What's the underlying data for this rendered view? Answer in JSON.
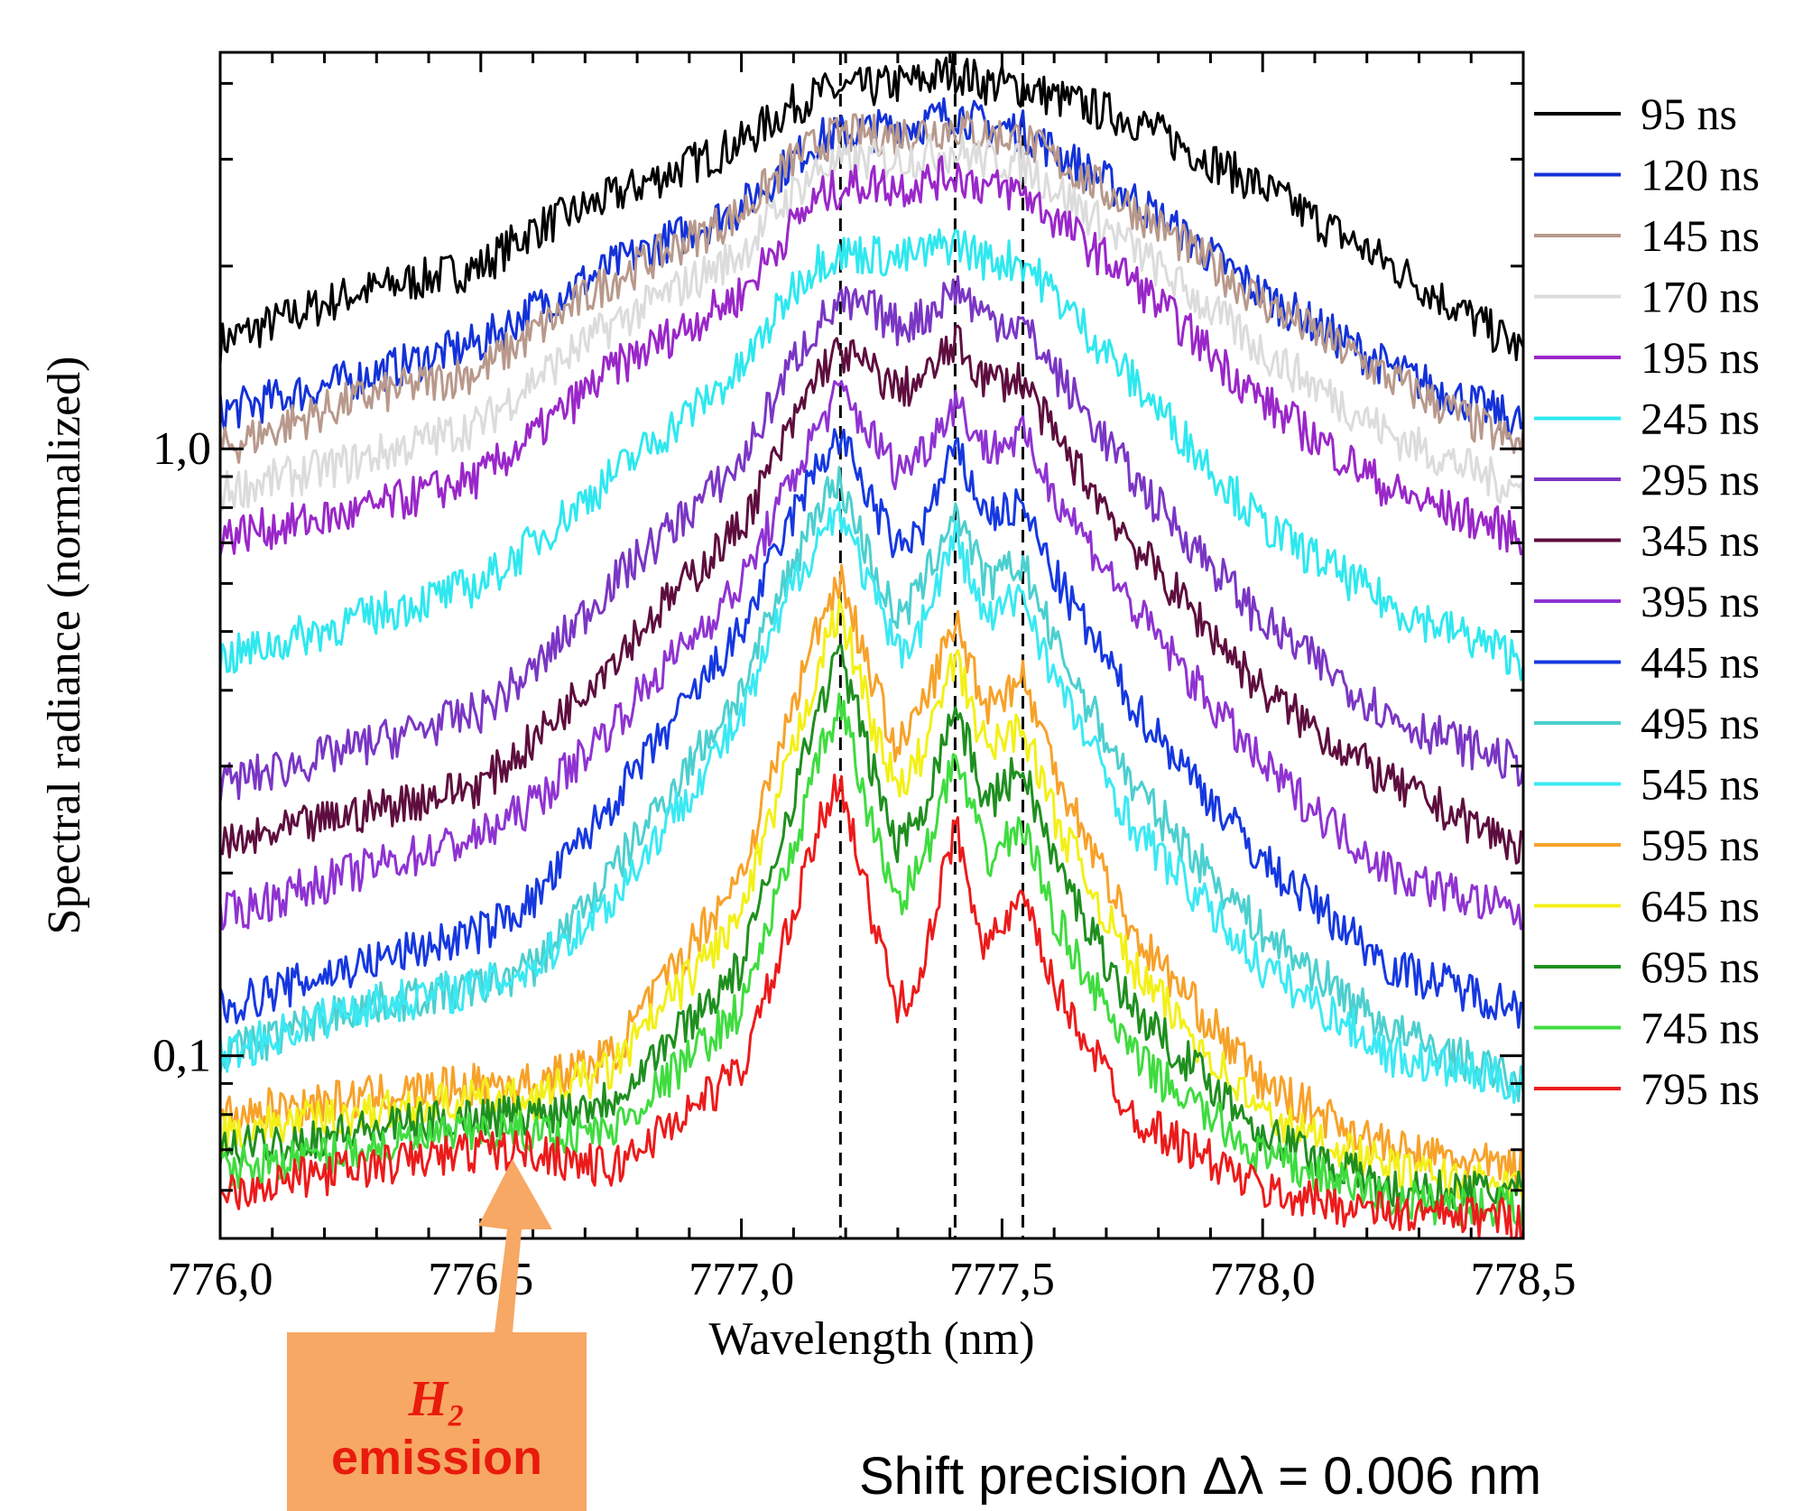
{
  "chart_data": {
    "type": "line",
    "xlabel": "Wavelength (nm)",
    "ylabel": "Spectral radiance (normalized)",
    "xlim": [
      776.0,
      778.5
    ],
    "ylim": [
      0.05,
      4.5
    ],
    "yscale": "log",
    "xticks": [
      {
        "value": 776.0,
        "label": "776,0"
      },
      {
        "value": 776.5,
        "label": "776,5"
      },
      {
        "value": 777.0,
        "label": "777,0"
      },
      {
        "value": 777.5,
        "label": "777,5"
      },
      {
        "value": 778.0,
        "label": "778,0"
      },
      {
        "value": 778.5,
        "label": "778,5"
      }
    ],
    "yticks": [
      {
        "value": 0.1,
        "label": "0,1"
      },
      {
        "value": 1.0,
        "label": "1,0"
      }
    ],
    "reference_lines": [
      777.19,
      777.41,
      777.54
    ],
    "legend_position": "right",
    "grid": false,
    "x": [
      776.0,
      776.25,
      776.5,
      776.6,
      776.75,
      777.0,
      777.1,
      777.15,
      777.19,
      777.25,
      777.3,
      777.35,
      777.41,
      777.47,
      777.54,
      777.6,
      777.75,
      778.0,
      778.25,
      778.5
    ],
    "series": [
      {
        "name": "95 ns",
        "color": "#000000",
        "values": [
          1.5,
          1.8,
          2.0,
          2.3,
          2.6,
          3.2,
          3.7,
          3.85,
          3.9,
          3.95,
          4.0,
          4.05,
          4.2,
          4.0,
          3.95,
          3.8,
          3.5,
          2.7,
          2.0,
          1.45
        ]
      },
      {
        "name": "120 ns",
        "color": "#1432d8",
        "values": [
          1.15,
          1.3,
          1.5,
          1.7,
          2.0,
          2.5,
          3.0,
          3.25,
          3.3,
          3.35,
          3.4,
          3.45,
          3.6,
          3.4,
          3.35,
          3.1,
          2.6,
          1.8,
          1.35,
          1.1
        ]
      },
      {
        "name": "145 ns",
        "color": "#b8998c",
        "values": [
          1.0,
          1.2,
          1.35,
          1.55,
          1.9,
          2.45,
          3.0,
          3.2,
          3.3,
          3.3,
          3.3,
          3.35,
          3.4,
          3.3,
          3.25,
          3.0,
          2.5,
          1.75,
          1.3,
          1.0
        ]
      },
      {
        "name": "170 ns",
        "color": "#dcdcdc",
        "values": [
          0.85,
          0.95,
          1.1,
          1.3,
          1.6,
          2.1,
          2.65,
          2.9,
          2.95,
          3.0,
          3.0,
          3.05,
          3.1,
          3.0,
          2.95,
          2.7,
          2.15,
          1.45,
          1.05,
          0.85
        ]
      },
      {
        "name": "195 ns",
        "color": "#9a27c9",
        "values": [
          0.72,
          0.78,
          0.9,
          1.05,
          1.35,
          1.8,
          2.35,
          2.6,
          2.7,
          2.75,
          2.7,
          2.75,
          2.85,
          2.7,
          2.65,
          2.4,
          1.9,
          1.2,
          0.85,
          0.72
        ]
      },
      {
        "name": "245 ns",
        "color": "#2fe8ef",
        "values": [
          0.45,
          0.52,
          0.6,
          0.7,
          0.9,
          1.35,
          1.85,
          2.05,
          2.1,
          2.1,
          2.05,
          2.1,
          2.2,
          2.05,
          2.05,
          1.8,
          1.3,
          0.75,
          0.55,
          0.45
        ]
      },
      {
        "name": "295 ns",
        "color": "#7a36c4",
        "values": [
          0.28,
          0.32,
          0.37,
          0.43,
          0.6,
          0.95,
          1.4,
          1.62,
          1.72,
          1.7,
          1.6,
          1.65,
          1.85,
          1.65,
          1.6,
          1.35,
          0.9,
          0.52,
          0.36,
          0.3
        ]
      },
      {
        "name": "345 ns",
        "color": "#5e0e3e",
        "values": [
          0.22,
          0.25,
          0.28,
          0.33,
          0.45,
          0.75,
          1.1,
          1.35,
          1.45,
          1.35,
          1.25,
          1.3,
          1.5,
          1.3,
          1.3,
          1.05,
          0.7,
          0.4,
          0.28,
          0.22
        ]
      },
      {
        "name": "395 ns",
        "color": "#8f33d2",
        "values": [
          0.17,
          0.2,
          0.23,
          0.26,
          0.35,
          0.6,
          0.9,
          1.1,
          1.25,
          1.05,
          0.92,
          1.0,
          1.2,
          1.0,
          1.05,
          0.85,
          0.55,
          0.3,
          0.2,
          0.17
        ]
      },
      {
        "name": "445 ns",
        "color": "#1638e0",
        "values": [
          0.12,
          0.14,
          0.16,
          0.18,
          0.26,
          0.5,
          0.78,
          0.95,
          1.05,
          0.82,
          0.68,
          0.75,
          1.0,
          0.78,
          0.8,
          0.62,
          0.38,
          0.21,
          0.14,
          0.12
        ]
      },
      {
        "name": "495 ns",
        "color": "#4ccfcf",
        "values": [
          0.1,
          0.12,
          0.13,
          0.14,
          0.2,
          0.4,
          0.65,
          0.82,
          0.88,
          0.65,
          0.52,
          0.6,
          0.8,
          0.6,
          0.65,
          0.48,
          0.28,
          0.16,
          0.11,
          0.09
        ]
      },
      {
        "name": "545 ns",
        "color": "#3ae9f3",
        "values": [
          0.1,
          0.12,
          0.13,
          0.14,
          0.18,
          0.36,
          0.6,
          0.72,
          0.8,
          0.58,
          0.46,
          0.52,
          0.72,
          0.52,
          0.58,
          0.42,
          0.24,
          0.14,
          0.1,
          0.09
        ]
      },
      {
        "name": "595 ns",
        "color": "#f7a229",
        "values": [
          0.08,
          0.085,
          0.09,
          0.09,
          0.1,
          0.2,
          0.38,
          0.52,
          0.62,
          0.42,
          0.32,
          0.38,
          0.52,
          0.38,
          0.42,
          0.3,
          0.16,
          0.09,
          0.07,
          0.065
        ]
      },
      {
        "name": "645 ns",
        "color": "#f3f018",
        "values": [
          0.075,
          0.08,
          0.085,
          0.085,
          0.095,
          0.17,
          0.32,
          0.45,
          0.54,
          0.36,
          0.27,
          0.32,
          0.45,
          0.32,
          0.35,
          0.25,
          0.14,
          0.08,
          0.065,
          0.06
        ]
      },
      {
        "name": "695 ns",
        "color": "#1f8f1f",
        "values": [
          0.07,
          0.075,
          0.08,
          0.08,
          0.085,
          0.14,
          0.27,
          0.38,
          0.46,
          0.3,
          0.22,
          0.26,
          0.38,
          0.26,
          0.3,
          0.21,
          0.12,
          0.075,
          0.06,
          0.06
        ]
      },
      {
        "name": "745 ns",
        "color": "#3fdc3f",
        "values": [
          0.065,
          0.07,
          0.075,
          0.075,
          0.075,
          0.12,
          0.22,
          0.31,
          0.38,
          0.24,
          0.18,
          0.21,
          0.31,
          0.21,
          0.24,
          0.17,
          0.1,
          0.068,
          0.058,
          0.056
        ]
      },
      {
        "name": "795 ns",
        "color": "#ec1b1b",
        "values": [
          0.06,
          0.065,
          0.07,
          0.07,
          0.065,
          0.095,
          0.17,
          0.24,
          0.29,
          0.17,
          0.12,
          0.14,
          0.24,
          0.15,
          0.18,
          0.13,
          0.08,
          0.06,
          0.055,
          0.054
        ]
      }
    ]
  },
  "annotation": {
    "h2_label": "H₂",
    "emission_label": "emission"
  },
  "footer": {
    "precision_text": "Shift precision Δλ = 0.006 nm"
  }
}
